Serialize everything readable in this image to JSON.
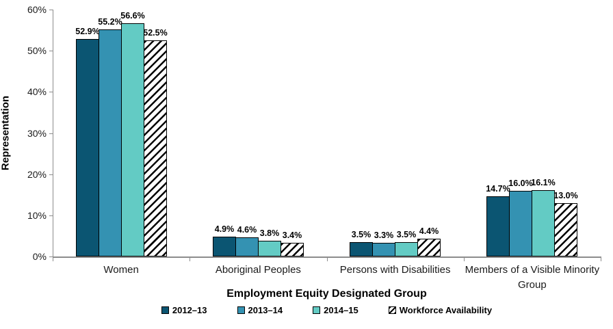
{
  "chart_data": {
    "type": "bar",
    "title": "",
    "categories": [
      "Women",
      "Aboriginal Peoples",
      "Persons with Disabilities",
      "Members of a Visible Minority Group"
    ],
    "series": [
      {
        "name": "2012–13",
        "color": "#0B5572",
        "pattern": "solid",
        "values": [
          52.9,
          4.9,
          3.5,
          14.7
        ]
      },
      {
        "name": "2013–14",
        "color": "#3492B2",
        "pattern": "solid",
        "values": [
          55.2,
          4.6,
          3.3,
          16.0
        ]
      },
      {
        "name": "2014–15",
        "color": "#63CBC4",
        "pattern": "solid",
        "values": [
          56.6,
          3.8,
          3.5,
          16.1
        ]
      },
      {
        "name": "Workforce Availability",
        "color": "#FFFFFF",
        "pattern": "diagonal-hatch",
        "values": [
          52.5,
          3.4,
          4.4,
          13.0
        ]
      }
    ],
    "data_labels": [
      [
        "52.9%",
        "55.2%",
        "56.6%",
        "52.5%"
      ],
      [
        "4.9%",
        "4.6%",
        "3.8%",
        "3.4%"
      ],
      [
        "3.5%",
        "3.3%",
        "3.5%",
        "4.4%"
      ],
      [
        "14.7%",
        "16.0%",
        "16.1%",
        "13.0%"
      ]
    ],
    "xlabel": "Employment Equity Designated Group",
    "ylabel": "Representation",
    "ylim": [
      0,
      60
    ],
    "ytick_labels": [
      "0%",
      "10%",
      "20%",
      "30%",
      "40%",
      "50%",
      "60%"
    ],
    "grid": false,
    "legend_position": "bottom",
    "axis_color": "#8C8C8C",
    "bar_border_color": "#000000"
  }
}
